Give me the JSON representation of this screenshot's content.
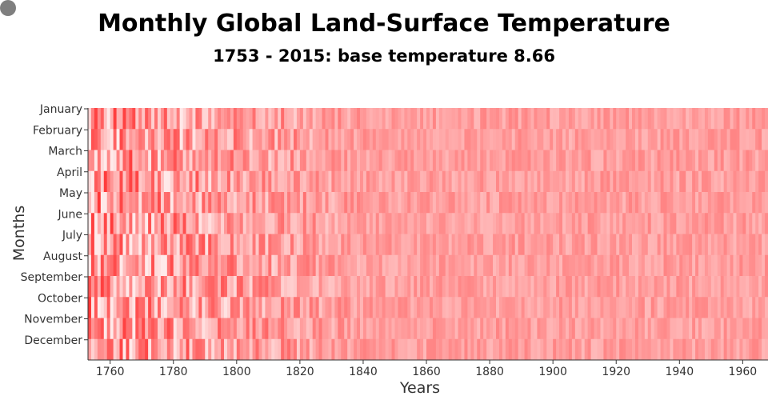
{
  "title": "Monthly Global Land-Surface Temperature",
  "subtitle": "1753 - 2015: base temperature 8.66",
  "colors": {
    "cell_base": "#ff8080",
    "corner_dot": "#7f7f7f"
  },
  "chart_data": {
    "type": "heatmap",
    "title": "Monthly Global Land-Surface Temperature",
    "subtitle": "1753 - 2015: base temperature 8.66",
    "xlabel": "Years",
    "ylabel": "Months",
    "base_temperature": 8.66,
    "year_range": [
      1753,
      2015
    ],
    "x_visible_range": [
      1753,
      1968
    ],
    "x_ticks": [
      "1760",
      "1780",
      "1800",
      "1820",
      "1840",
      "1860",
      "1880",
      "1900",
      "1920",
      "1940",
      "1960"
    ],
    "months": [
      "January",
      "February",
      "March",
      "April",
      "May",
      "June",
      "July",
      "August",
      "September",
      "October",
      "November",
      "December"
    ],
    "color_scale": "light red (low variance) to saturated red (high variance)",
    "grid": false
  }
}
